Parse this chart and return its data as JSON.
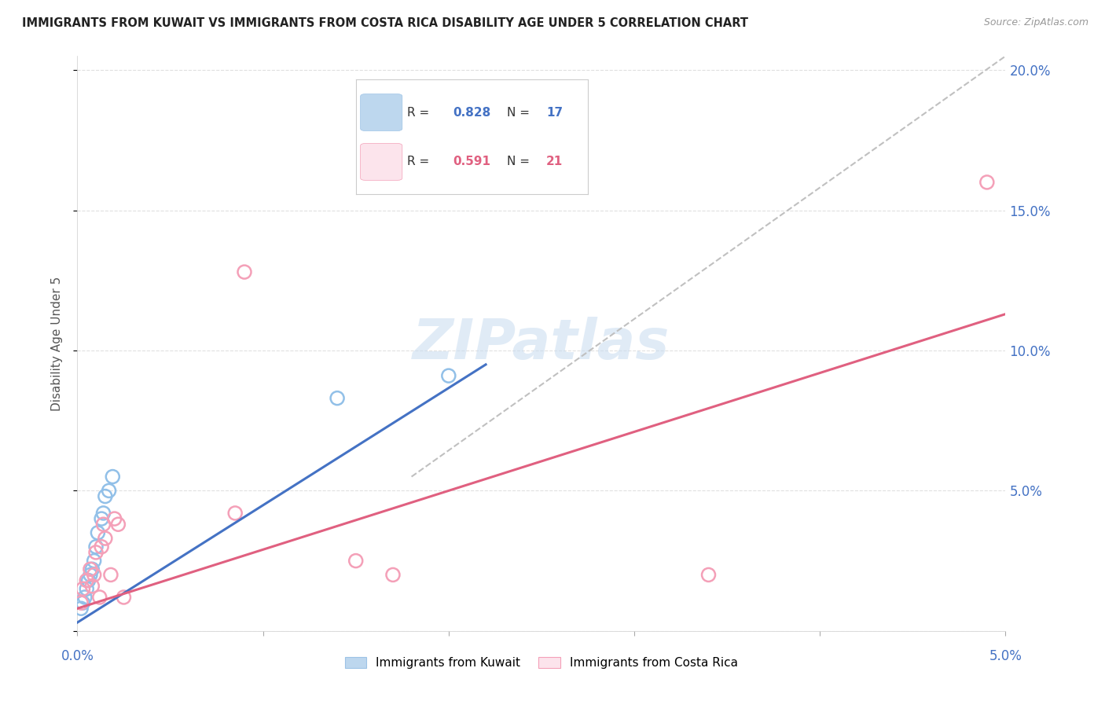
{
  "title": "IMMIGRANTS FROM KUWAIT VS IMMIGRANTS FROM COSTA RICA DISABILITY AGE UNDER 5 CORRELATION CHART",
  "source": "Source: ZipAtlas.com",
  "ylabel": "Disability Age Under 5",
  "xlim": [
    0.0,
    0.05
  ],
  "ylim": [
    0.0,
    0.205
  ],
  "yticks": [
    0.0,
    0.05,
    0.1,
    0.15,
    0.2
  ],
  "ytick_labels": [
    "",
    "5.0%",
    "10.0%",
    "15.0%",
    "20.0%"
  ],
  "kuwait_R": "0.828",
  "kuwait_N": "17",
  "costarica_R": "0.591",
  "costarica_N": "21",
  "kuwait_color": "#92C0E8",
  "costarica_color": "#F4A0B8",
  "kuwait_line_color": "#4472C4",
  "costarica_line_color": "#E06080",
  "ref_line_color": "#C0C0C0",
  "background_color": "#FFFFFF",
  "grid_color": "#E0E0E0",
  "watermark_color": "#C8DCF0",
  "kuwait_line_x0": 0.0,
  "kuwait_line_y0": 0.003,
  "kuwait_line_x1": 0.022,
  "kuwait_line_y1": 0.095,
  "costarica_line_x0": 0.0,
  "costarica_line_y0": 0.008,
  "costarica_line_x1": 0.05,
  "costarica_line_y1": 0.113,
  "ref_line_x0": 0.018,
  "ref_line_y0": 0.055,
  "ref_line_x1": 0.05,
  "ref_line_y1": 0.205,
  "kuwait_x": [
    0.0002,
    0.0003,
    0.0004,
    0.0005,
    0.0006,
    0.0007,
    0.0008,
    0.0009,
    0.001,
    0.0011,
    0.0013,
    0.0014,
    0.0015,
    0.0017,
    0.0019,
    0.014,
    0.02
  ],
  "kuwait_y": [
    0.008,
    0.01,
    0.012,
    0.015,
    0.018,
    0.02,
    0.022,
    0.025,
    0.03,
    0.035,
    0.04,
    0.042,
    0.048,
    0.05,
    0.055,
    0.083,
    0.091
  ],
  "costarica_x": [
    0.0002,
    0.0003,
    0.0005,
    0.0007,
    0.0008,
    0.0009,
    0.001,
    0.0012,
    0.0013,
    0.0014,
    0.0015,
    0.0018,
    0.002,
    0.0022,
    0.0025,
    0.0085,
    0.009,
    0.015,
    0.017,
    0.034,
    0.049
  ],
  "costarica_y": [
    0.01,
    0.015,
    0.018,
    0.022,
    0.016,
    0.02,
    0.028,
    0.012,
    0.03,
    0.038,
    0.033,
    0.02,
    0.04,
    0.038,
    0.012,
    0.042,
    0.128,
    0.025,
    0.02,
    0.02,
    0.16
  ]
}
